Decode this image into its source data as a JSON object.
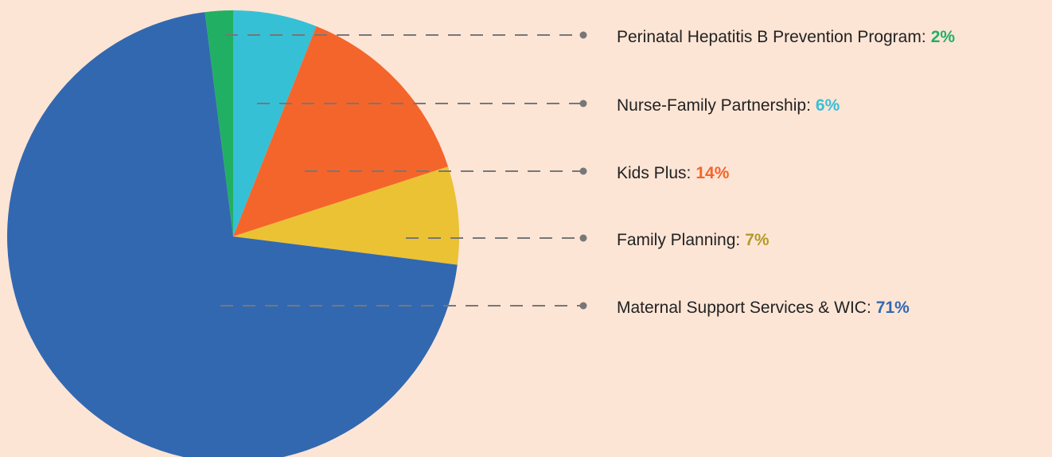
{
  "chart_data": {
    "type": "pie",
    "categories": [
      "Perinatal Hepatitis B Prevention Program:",
      "Nurse-Family Partnership:",
      "Kids Plus:",
      "Family Planning:",
      "Maternal Support Services & WIC:"
    ],
    "values": [
      2,
      6,
      14,
      7,
      71
    ],
    "value_labels": [
      "2%",
      "6%",
      "14%",
      "7%",
      "71%"
    ],
    "colors": [
      "#21b063",
      "#36c0d6",
      "#f4652b",
      "#ebc234",
      "#3268b0"
    ],
    "value_label_colors": [
      "#21b063",
      "#36c0d6",
      "#f4652b",
      "#b39a2a",
      "#3268b0"
    ]
  }
}
